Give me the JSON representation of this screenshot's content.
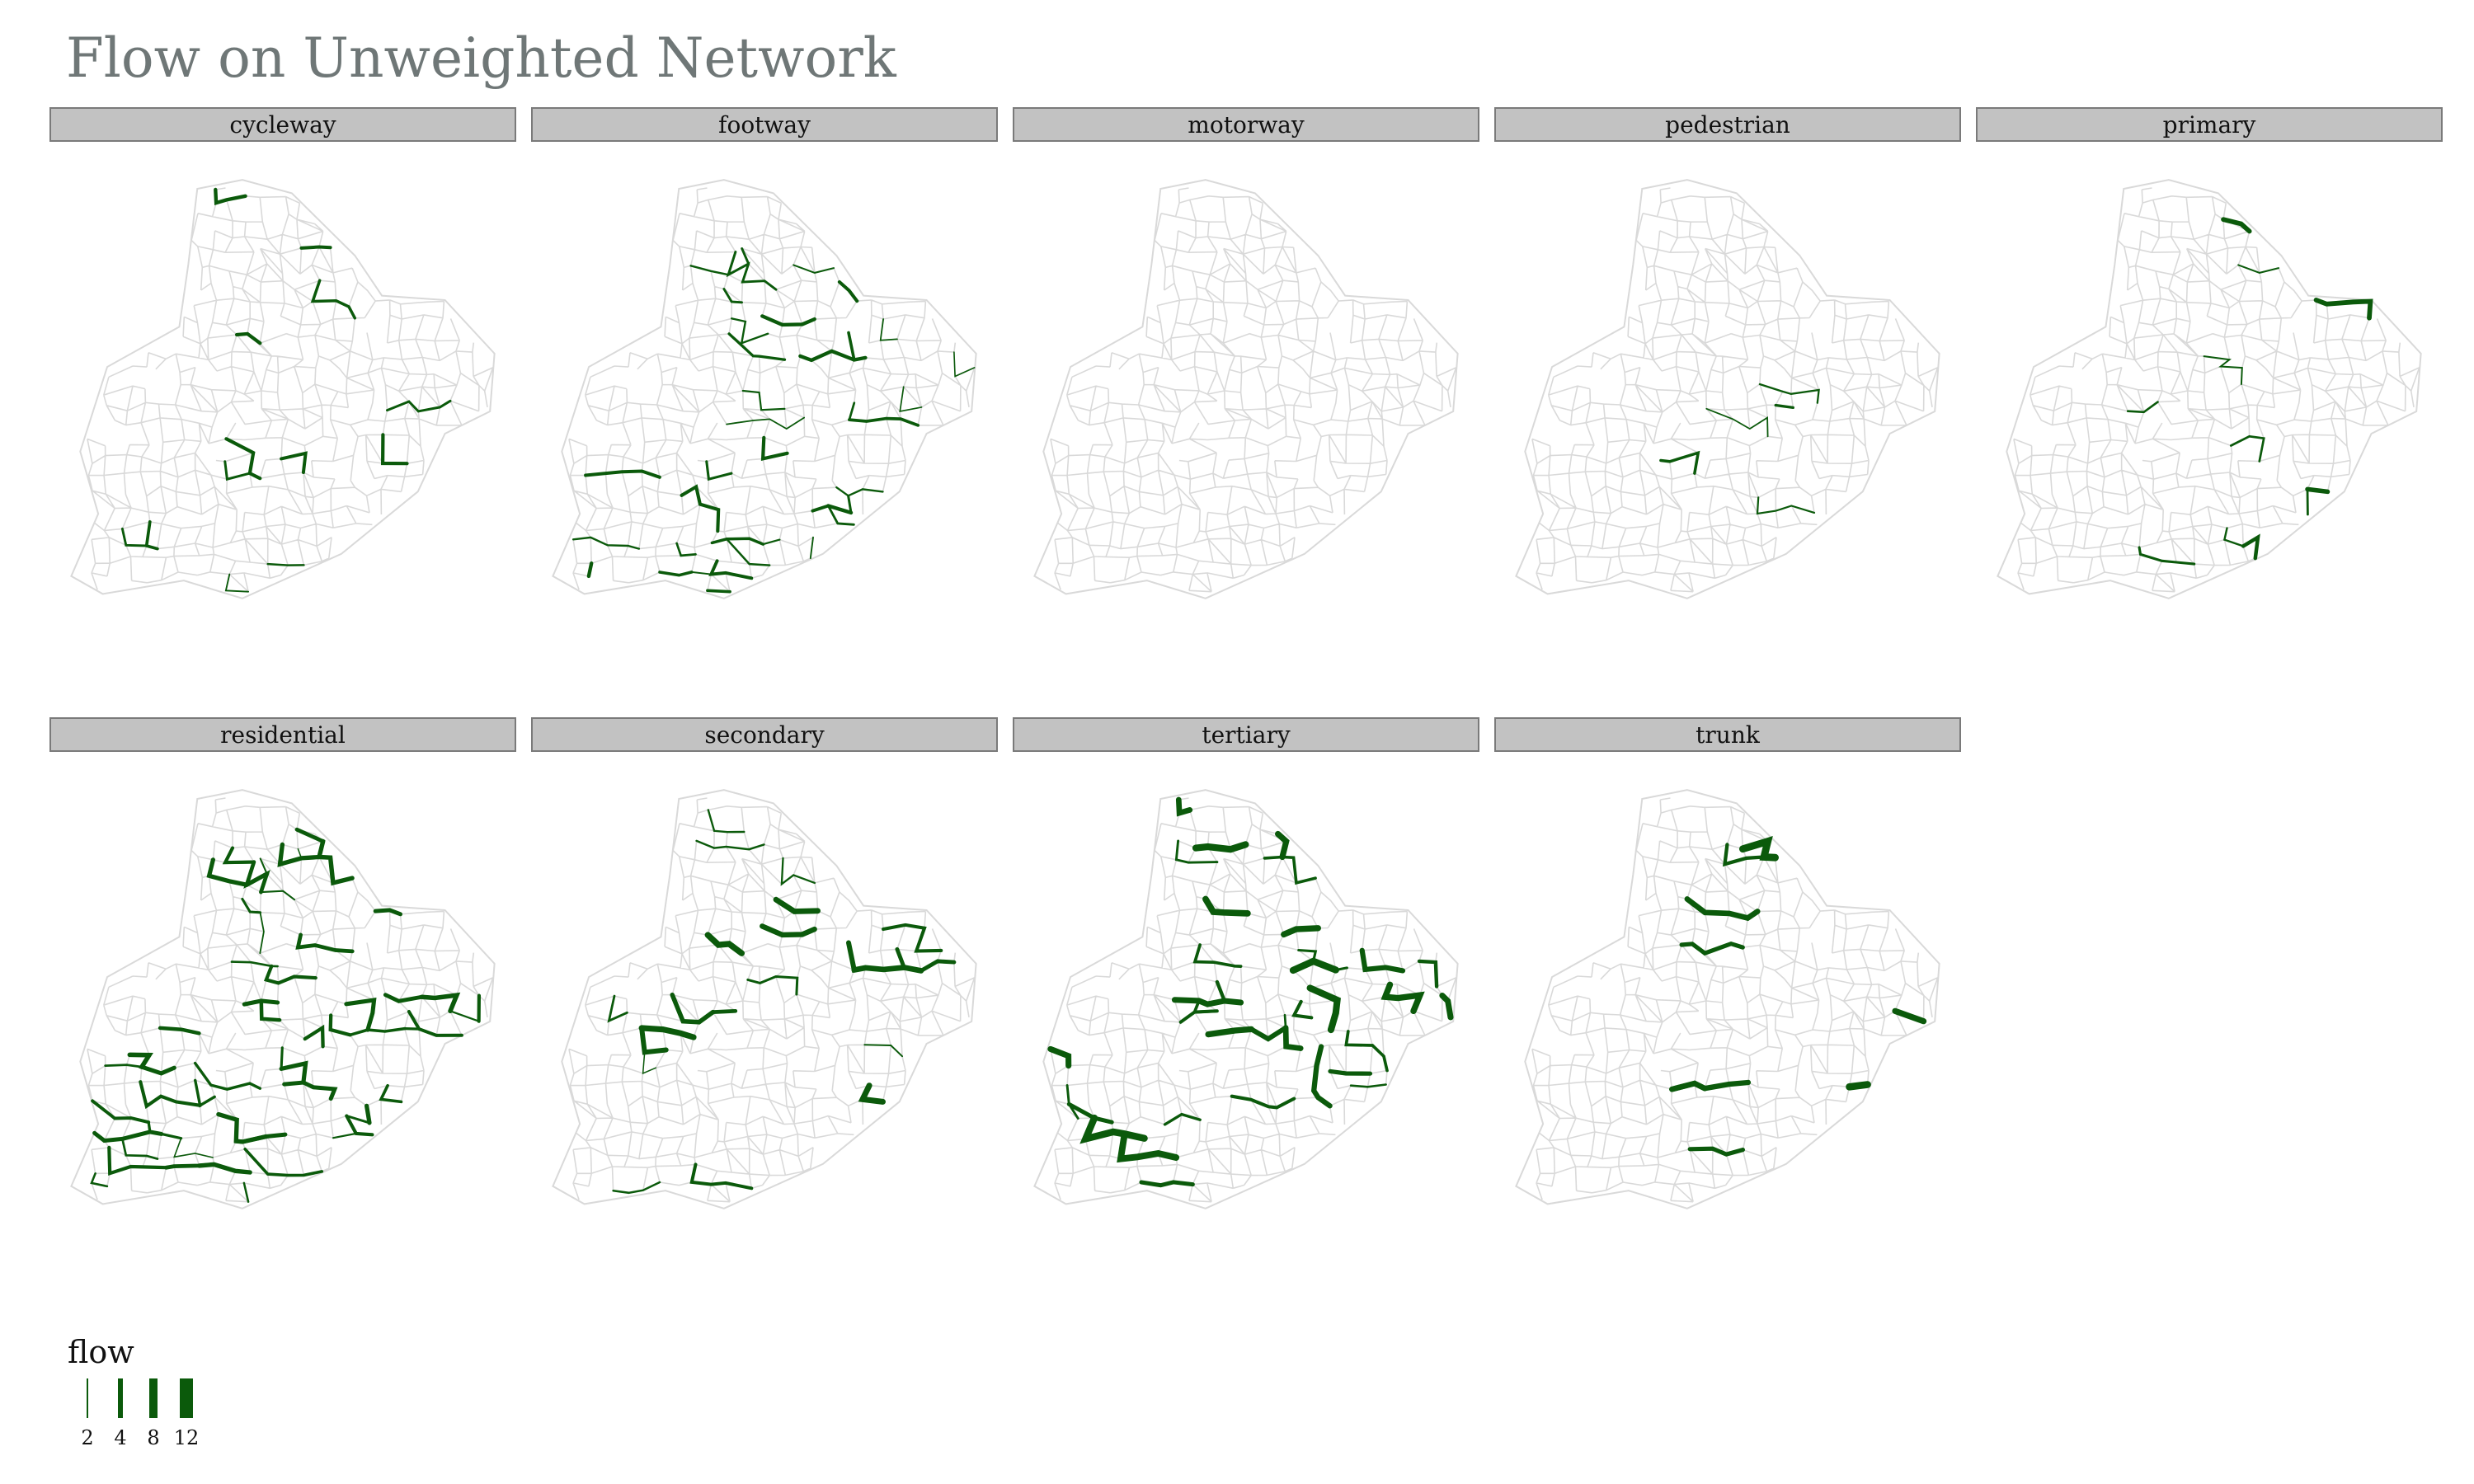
{
  "title": "Flow on Unweighted Network",
  "colors": {
    "flow": "#0b5a0b",
    "network": "#d9d9d9",
    "strip_bg": "#c2c2c2",
    "title": "#6f7777"
  },
  "facets": [
    {
      "label": "cycleway",
      "segments": 14,
      "flow": 3
    },
    {
      "label": "footway",
      "segments": 40,
      "flow": 3
    },
    {
      "label": "motorway",
      "segments": 0,
      "flow": 0
    },
    {
      "label": "pedestrian",
      "segments": 5,
      "flow": 2
    },
    {
      "label": "primary",
      "segments": 11,
      "flow": 5
    },
    {
      "label": "residential",
      "segments": 60,
      "flow": 4
    },
    {
      "label": "secondary",
      "segments": 22,
      "flow": 6
    },
    {
      "label": "tertiary",
      "segments": 38,
      "flow": 7
    },
    {
      "label": "trunk",
      "segments": 9,
      "flow": 8
    }
  ],
  "legend": {
    "title": "flow",
    "items": [
      {
        "label": "2",
        "value": 2
      },
      {
        "label": "4",
        "value": 4
      },
      {
        "label": "8",
        "value": 8
      },
      {
        "label": "12",
        "value": 12
      }
    ]
  }
}
